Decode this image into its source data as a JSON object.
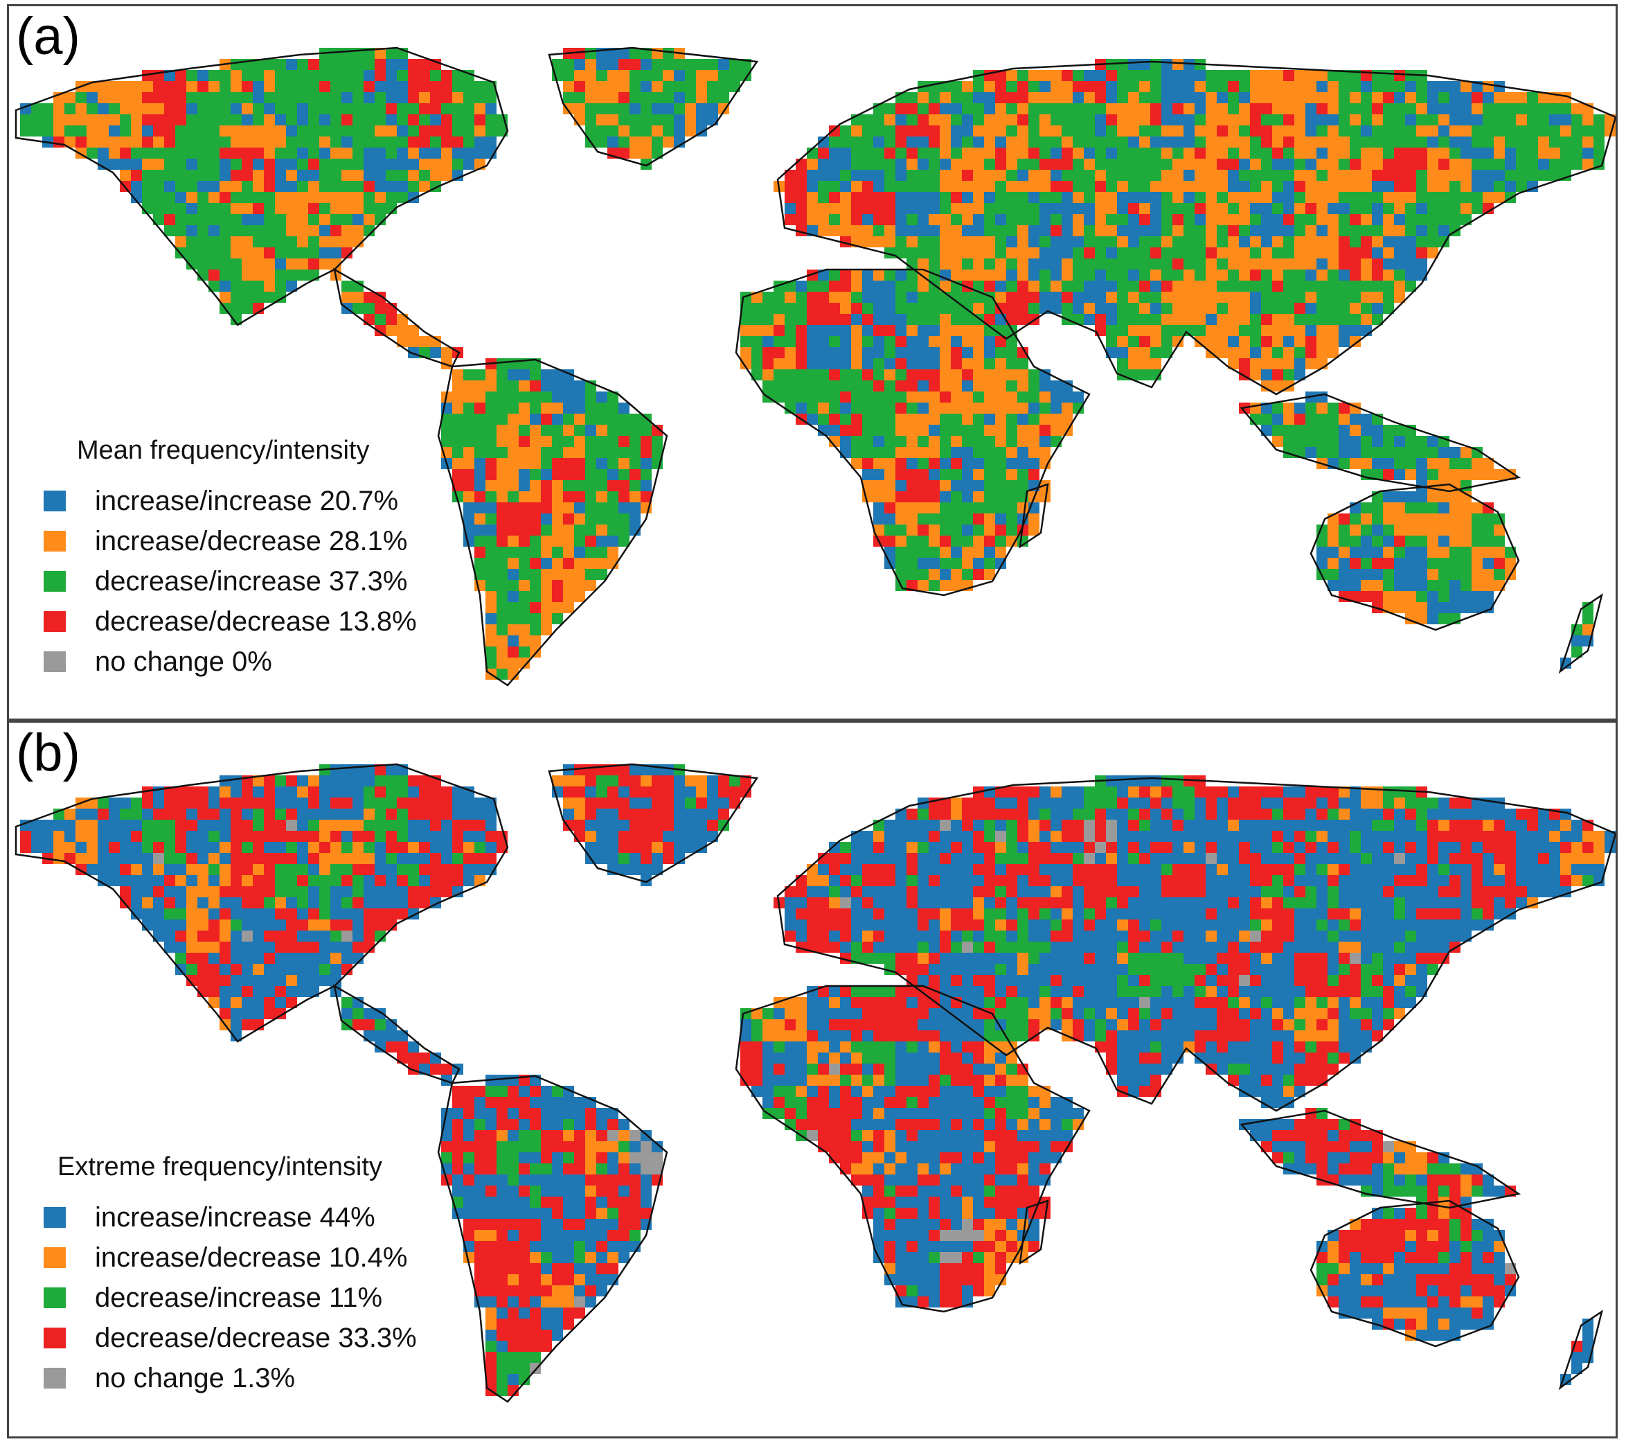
{
  "colors": {
    "increase_increase": "#1f77b4",
    "increase_decrease": "#ff8c1a",
    "decrease_increase": "#1faa3c",
    "decrease_decrease": "#ee2222",
    "no_change": "#9a9a9a",
    "coastline": "#111111"
  },
  "panels": [
    {
      "label": "(a)",
      "legend_title": "Mean frequency/intensity",
      "legend": [
        {
          "category": "increase_increase",
          "label": "increase/increase 20.7%"
        },
        {
          "category": "increase_decrease",
          "label": "increase/decrease 28.1%"
        },
        {
          "category": "decrease_increase",
          "label": "decrease/increase 37.3%"
        },
        {
          "category": "decrease_decrease",
          "label": "decrease/decrease 13.8%"
        },
        {
          "category": "no_change",
          "label": "no change 0%"
        }
      ],
      "class_shares": {
        "increase_increase": 20.7,
        "increase_decrease": 28.1,
        "decrease_increase": 37.3,
        "decrease_decrease": 13.8,
        "no_change": 0
      }
    },
    {
      "label": "(b)",
      "legend_title": "Extreme frequency/intensity",
      "legend": [
        {
          "category": "increase_increase",
          "label": "increase/increase 44%"
        },
        {
          "category": "increase_decrease",
          "label": "increase/decrease 10.4%"
        },
        {
          "category": "decrease_increase",
          "label": "decrease/increase 11%"
        },
        {
          "category": "decrease_decrease",
          "label": "decrease/decrease 33.3%"
        },
        {
          "category": "no_change",
          "label": "no change 1.3%"
        }
      ],
      "class_shares": {
        "increase_increase": 44,
        "increase_decrease": 10.4,
        "decrease_increase": 11,
        "decrease_decrease": 33.3,
        "no_change": 1.3
      }
    }
  ]
}
